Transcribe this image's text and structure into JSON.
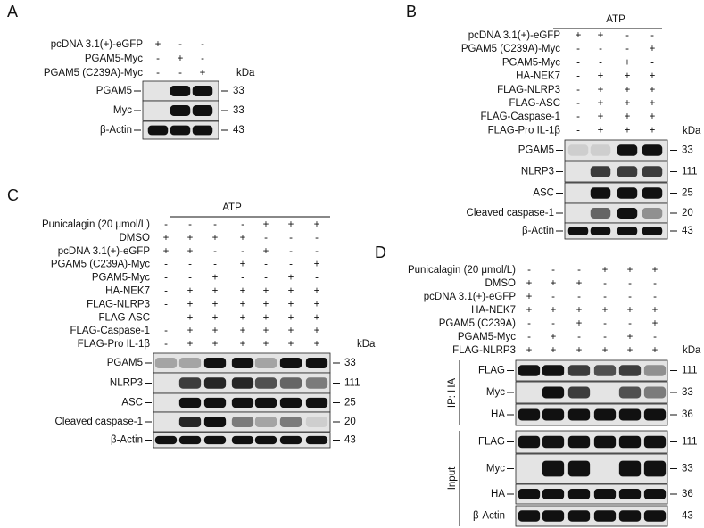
{
  "panels": [
    {
      "label": "A",
      "kda_unit": "kDa",
      "conditions": [
        {
          "label": "pcDNA 3.1(+)-eGFP",
          "signs": [
            "+",
            "-",
            "-"
          ]
        },
        {
          "label": "PGAM5-Myc",
          "signs": [
            "-",
            "+",
            "-"
          ]
        },
        {
          "label": "PGAM5 (C239A)-Myc",
          "signs": [
            "-",
            "-",
            "+"
          ]
        }
      ],
      "blots": [
        {
          "label": "PGAM5",
          "kda": 33
        },
        {
          "label": "Myc",
          "kda": 33
        },
        {
          "label": "β-Actin",
          "kda": 43
        }
      ]
    },
    {
      "label": "B",
      "header": "ATP",
      "kda_unit": "kDa",
      "conditions": [
        {
          "label": "pcDNA 3.1(+)-eGFP",
          "signs": [
            "+",
            "+",
            "-",
            "-"
          ]
        },
        {
          "label": "PGAM5 (C239A)-Myc",
          "signs": [
            "-",
            "-",
            "-",
            "+"
          ]
        },
        {
          "label": "PGAM5-Myc",
          "signs": [
            "-",
            "-",
            "+",
            "-"
          ]
        },
        {
          "label": "HA-NEK7",
          "signs": [
            "-",
            "+",
            "+",
            "+"
          ]
        },
        {
          "label": "FLAG-NLRP3",
          "signs": [
            "-",
            "+",
            "+",
            "+"
          ]
        },
        {
          "label": "FLAG-ASC",
          "signs": [
            "-",
            "+",
            "+",
            "+"
          ]
        },
        {
          "label": "FLAG-Caspase-1",
          "signs": [
            "-",
            "+",
            "+",
            "+"
          ]
        },
        {
          "label": "FLAG-Pro IL-1β",
          "signs": [
            "-",
            "+",
            "+",
            "+"
          ]
        }
      ],
      "blots": [
        {
          "label": "PGAM5",
          "kda": 33
        },
        {
          "label": "NLRP3",
          "kda": 111
        },
        {
          "label": "ASC",
          "kda": 25
        },
        {
          "label": "Cleaved caspase-1",
          "kda": 20
        },
        {
          "label": "β-Actin",
          "kda": 43
        }
      ]
    },
    {
      "label": "C",
      "header": "ATP",
      "kda_unit": "kDa",
      "conditions": [
        {
          "label": "Punicalagin (20 μmol/L)",
          "signs": [
            "-",
            "-",
            "-",
            "-",
            "+",
            "+",
            "+"
          ]
        },
        {
          "label": "DMSO",
          "signs": [
            "+",
            "+",
            "+",
            "+",
            "-",
            "-",
            "-"
          ]
        },
        {
          "label": "pcDNA 3.1(+)-eGFP",
          "signs": [
            "+",
            "+",
            "-",
            "-",
            "+",
            "-",
            "-"
          ]
        },
        {
          "label": "PGAM5 (C239A)-Myc",
          "signs": [
            "-",
            "-",
            "-",
            "+",
            "-",
            "-",
            "+"
          ]
        },
        {
          "label": "PGAM5-Myc",
          "signs": [
            "-",
            "-",
            "+",
            "-",
            "-",
            "+",
            "-"
          ]
        },
        {
          "label": "HA-NEK7",
          "signs": [
            "-",
            "+",
            "+",
            "+",
            "+",
            "+",
            "+"
          ]
        },
        {
          "label": "FLAG-NLRP3",
          "signs": [
            "-",
            "+",
            "+",
            "+",
            "+",
            "+",
            "+"
          ]
        },
        {
          "label": "FLAG-ASC",
          "signs": [
            "-",
            "+",
            "+",
            "+",
            "+",
            "+",
            "+"
          ]
        },
        {
          "label": "FLAG-Caspase-1",
          "signs": [
            "-",
            "+",
            "+",
            "+",
            "+",
            "+",
            "+"
          ]
        },
        {
          "label": "FLAG-Pro IL-1β",
          "signs": [
            "-",
            "+",
            "+",
            "+",
            "+",
            "+",
            "+"
          ]
        }
      ],
      "blots": [
        {
          "label": "PGAM5",
          "kda": 33
        },
        {
          "label": "NLRP3",
          "kda": 111
        },
        {
          "label": "ASC",
          "kda": 25
        },
        {
          "label": "Cleaved caspase-1",
          "kda": 20
        },
        {
          "label": "β-Actin",
          "kda": 43
        }
      ]
    },
    {
      "label": "D",
      "kda_unit": "kDa",
      "conditions": [
        {
          "label": "Punicalagin (20 μmol/L)",
          "signs": [
            "-",
            "-",
            "-",
            "+",
            "+",
            "+"
          ]
        },
        {
          "label": "DMSO",
          "signs": [
            "+",
            "+",
            "+",
            "-",
            "-",
            "-"
          ]
        },
        {
          "label": "pcDNA 3.1(+)-eGFP",
          "signs": [
            "+",
            "-",
            "-",
            "-",
            "-",
            "-"
          ]
        },
        {
          "label": "HA-NEK7",
          "signs": [
            "+",
            "+",
            "+",
            "+",
            "+",
            "+"
          ]
        },
        {
          "label": "PGAM5 (C239A)",
          "signs": [
            "-",
            "-",
            "+",
            "-",
            "-",
            "+"
          ]
        },
        {
          "label": "PGAM5-Myc",
          "signs": [
            "-",
            "+",
            "-",
            "-",
            "+",
            "-"
          ]
        },
        {
          "label": "FLAG-NLRP3",
          "signs": [
            "+",
            "+",
            "+",
            "+",
            "+",
            "+"
          ]
        }
      ],
      "groups": [
        {
          "label": "IP: HA",
          "blots": [
            {
              "label": "FLAG",
              "kda": 111
            },
            {
              "label": "Myc",
              "kda": 33
            },
            {
              "label": "HA",
              "kda": 36
            }
          ]
        },
        {
          "label": "Input",
          "blots": [
            {
              "label": "FLAG",
              "kda": 111
            },
            {
              "label": "Myc",
              "kda": 33
            },
            {
              "label": "HA",
              "kda": 36
            },
            {
              "label": "β-Actin",
              "kda": 43
            }
          ]
        }
      ]
    }
  ]
}
